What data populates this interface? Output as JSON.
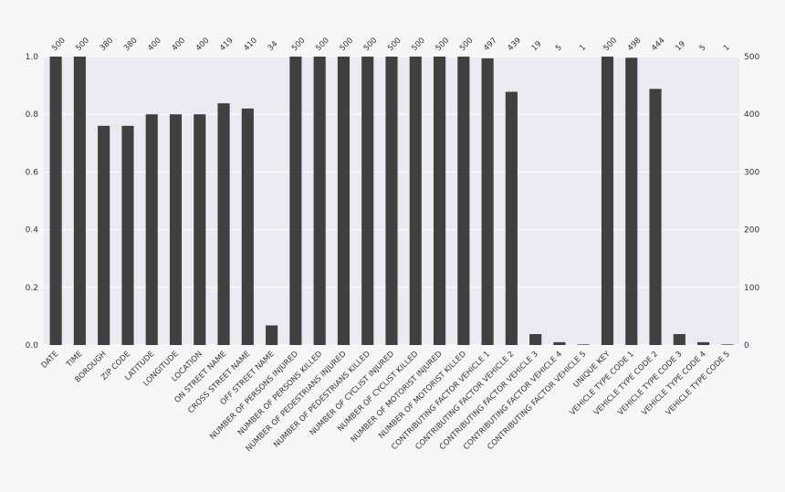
{
  "chart_data": {
    "type": "bar",
    "title": "",
    "xlabel": "",
    "ylabel": "",
    "ylim": [
      0,
      1.0
    ],
    "y2lim": [
      0,
      500
    ],
    "total_rows": 500,
    "left_ticks": [
      "0.0",
      "0.2",
      "0.4",
      "0.6",
      "0.8",
      "1.0"
    ],
    "right_ticks": [
      "0",
      "100",
      "200",
      "300",
      "400",
      "500"
    ],
    "categories": [
      "DATE",
      "TIME",
      "BOROUGH",
      "ZIP CODE",
      "LATITUDE",
      "LONGITUDE",
      "LOCATION",
      "ON STREET NAME",
      "CROSS STREET NAME",
      "OFF STREET NAME",
      "NUMBER OF PERSONS INJURED",
      "NUMBER OF PERSONS KILLED",
      "NUMBER OF PEDESTRIANS INJURED",
      "NUMBER OF PEDESTRIANS KILLED",
      "NUMBER OF CYCLIST INJURED",
      "NUMBER OF CYCLIST KILLED",
      "NUMBER OF MOTORIST INJURED",
      "NUMBER OF MOTORIST KILLED",
      "CONTRIBUTING FACTOR VEHICLE 1",
      "CONTRIBUTING FACTOR VEHICLE 2",
      "CONTRIBUTING FACTOR VEHICLE 3",
      "CONTRIBUTING FACTOR VEHICLE 4",
      "CONTRIBUTING FACTOR VEHICLE 5",
      "UNIQUE KEY",
      "VEHICLE TYPE CODE 1",
      "VEHICLE TYPE CODE 2",
      "VEHICLE TYPE CODE 3",
      "VEHICLE TYPE CODE 4",
      "VEHICLE TYPE CODE 5"
    ],
    "counts": [
      500,
      500,
      380,
      380,
      400,
      400,
      400,
      419,
      410,
      34,
      500,
      500,
      500,
      500,
      500,
      500,
      500,
      500,
      497,
      439,
      19,
      5,
      1,
      500,
      498,
      444,
      19,
      5,
      1
    ],
    "grid": true,
    "colors": {
      "bar": "#404040",
      "plot_background": "#eaeaf2",
      "page_background": "#f6f6f6",
      "grid": "#ffffff",
      "text": "#333333"
    }
  }
}
